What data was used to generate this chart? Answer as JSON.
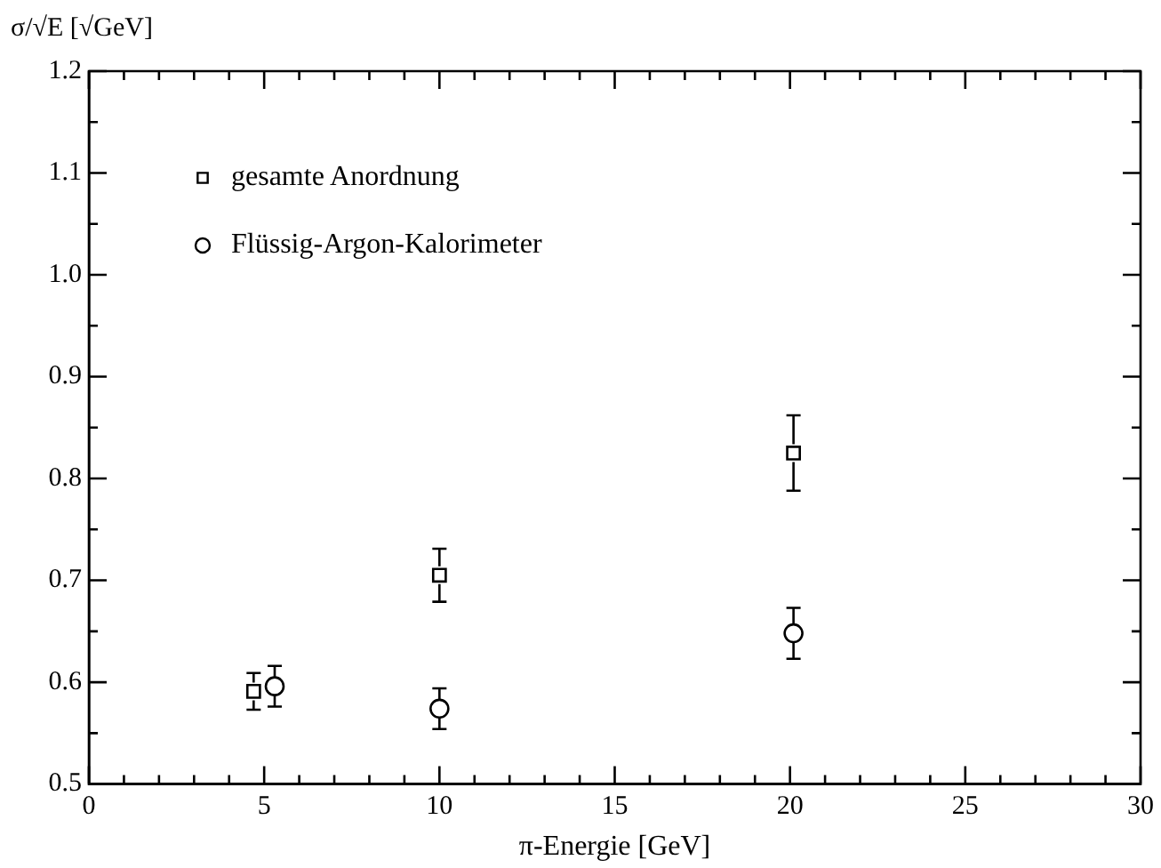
{
  "chart_data": {
    "type": "scatter",
    "xlabel": "π-Energie [GeV]",
    "ylabel": "σ/√E [√GeV]",
    "xlim": [
      0,
      30
    ],
    "xticks": [
      0,
      {
        "value": 1,
        "label": null
      },
      {
        "value": 2,
        "label": null
      },
      {
        "value": 3,
        "label": null
      },
      {
        "value": 4,
        "label": null
      },
      5,
      {
        "value": 6,
        "label": null
      },
      {
        "value": 7,
        "label": null
      },
      {
        "value": 8,
        "label": null
      },
      {
        "value": 9,
        "label": null
      },
      10,
      {
        "value": 11,
        "label": null
      },
      {
        "value": 12,
        "label": null
      },
      {
        "value": 13,
        "label": null
      },
      {
        "value": 14,
        "label": null
      },
      15,
      {
        "value": 16,
        "label": null
      },
      {
        "value": 17,
        "label": null
      },
      {
        "value": 18,
        "label": null
      },
      {
        "value": 19,
        "label": null
      },
      20,
      {
        "value": 21,
        "label": null
      },
      {
        "value": 22,
        "label": null
      },
      {
        "value": 23,
        "label": null
      },
      {
        "value": 24,
        "label": null
      },
      25,
      {
        "value": 26,
        "label": null
      },
      {
        "value": 27,
        "label": null
      },
      {
        "value": 28,
        "label": null
      },
      {
        "value": 29,
        "label": null
      },
      30
    ],
    "ylim": [
      0.5,
      1.2
    ],
    "yticks": [
      {
        "value": 0.5,
        "label": "0.5"
      },
      {
        "value": 0.55,
        "label": null
      },
      {
        "value": 0.6,
        "label": "0.6"
      },
      {
        "value": 0.65,
        "label": null
      },
      {
        "value": 0.7,
        "label": "0.7"
      },
      {
        "value": 0.75,
        "label": null
      },
      {
        "value": 0.8,
        "label": "0.8"
      },
      {
        "value": 0.85,
        "label": null
      },
      {
        "value": 0.9,
        "label": "0.9"
      },
      {
        "value": 0.95,
        "label": null
      },
      {
        "value": 1.0,
        "label": "1.0"
      },
      {
        "value": 1.05,
        "label": null
      },
      {
        "value": 1.1,
        "label": "1.1"
      },
      {
        "value": 1.15,
        "label": null
      },
      {
        "value": 1.2,
        "label": "1.2"
      }
    ],
    "grid": false,
    "legend": "top left",
    "series": [
      {
        "name": "gesamte Anordnung",
        "color": "#000000",
        "marker": "square",
        "x": [
          4.7,
          10,
          20.1
        ],
        "values": [
          0.591,
          0.705,
          0.825
        ],
        "errors": [
          0.018,
          0.026,
          0.037
        ]
      },
      {
        "name": "Flüssig-Argon-Kalorimeter",
        "color": "#000000",
        "marker": "circle",
        "x": [
          5.3,
          10,
          20.1
        ],
        "values": [
          0.596,
          0.574,
          0.648
        ],
        "errors": [
          0.02,
          0.02,
          0.025
        ]
      }
    ]
  }
}
